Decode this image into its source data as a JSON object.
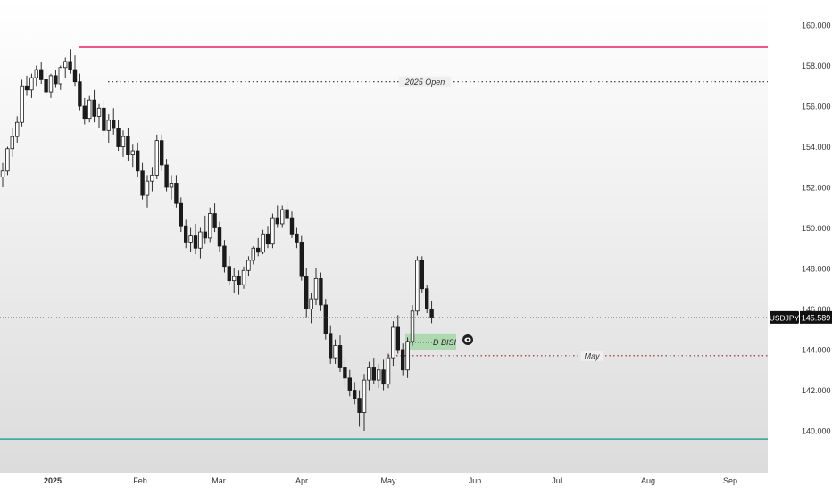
{
  "chart_data": {
    "type": "candlestick",
    "symbol": "USDJPY",
    "last_price": 145.589,
    "last_price_label": "145.589",
    "x_ticks": [
      "2025",
      "Feb",
      "Mar",
      "Apr",
      "May",
      "Jun",
      "Jul",
      "Aug",
      "Sep"
    ],
    "y_ticks": [
      140.0,
      142.0,
      144.0,
      146.0,
      148.0,
      150.0,
      152.0,
      154.0,
      156.0,
      158.0,
      160.0
    ],
    "y_tick_labels": [
      "140.000",
      "142.000",
      "144.000",
      "146.000",
      "148.000",
      "150.000",
      "152.000",
      "154.000",
      "156.000",
      "158.000",
      "160.000"
    ],
    "ylim": [
      139.0,
      161.2
    ],
    "levels": [
      {
        "name": "high",
        "price": 158.9,
        "color": "#e91e63",
        "style": "solid",
        "label": ""
      },
      {
        "name": "2025-open",
        "price": 157.2,
        "color": "#333333",
        "style": "dotted",
        "label": "2025 Open"
      },
      {
        "name": "may-open",
        "price": 143.7,
        "color": "#8b2a3a",
        "style": "dotted",
        "label": "May"
      },
      {
        "name": "low",
        "price": 139.6,
        "color": "#26a69a",
        "style": "solid",
        "label": ""
      }
    ],
    "zone": {
      "label": "D BISI",
      "top": 144.8,
      "bottom": 144.0,
      "color": "#a5d6a7"
    },
    "candles": [
      [
        152.5,
        153.2,
        152.0,
        152.8
      ],
      [
        152.8,
        154.0,
        152.6,
        153.9
      ],
      [
        153.9,
        154.9,
        153.5,
        154.5
      ],
      [
        154.5,
        155.5,
        154.2,
        155.2
      ],
      [
        155.2,
        157.3,
        155.0,
        157.0
      ],
      [
        157.0,
        157.5,
        156.5,
        156.8
      ],
      [
        156.8,
        157.6,
        156.4,
        157.4
      ],
      [
        157.4,
        158.0,
        157.0,
        157.8
      ],
      [
        157.8,
        158.2,
        157.1,
        157.3
      ],
      [
        157.3,
        157.9,
        156.5,
        156.7
      ],
      [
        156.7,
        157.6,
        156.4,
        157.5
      ],
      [
        157.5,
        157.8,
        156.9,
        157.1
      ],
      [
        157.1,
        158.0,
        156.8,
        157.9
      ],
      [
        157.9,
        158.4,
        157.4,
        158.2
      ],
      [
        158.2,
        158.8,
        157.6,
        157.8
      ],
      [
        157.8,
        158.5,
        157.0,
        157.2
      ],
      [
        157.2,
        157.6,
        155.8,
        156.0
      ],
      [
        156.0,
        156.4,
        155.1,
        155.4
      ],
      [
        155.4,
        156.5,
        155.2,
        156.3
      ],
      [
        156.3,
        156.8,
        155.2,
        155.5
      ],
      [
        155.5,
        156.1,
        154.9,
        155.9
      ],
      [
        155.9,
        156.3,
        154.5,
        154.8
      ],
      [
        154.8,
        155.6,
        154.2,
        155.3
      ],
      [
        155.3,
        155.9,
        154.6,
        154.9
      ],
      [
        154.9,
        155.3,
        153.8,
        154.0
      ],
      [
        154.0,
        154.8,
        153.5,
        154.5
      ],
      [
        154.5,
        154.9,
        153.3,
        153.6
      ],
      [
        153.6,
        154.1,
        153.0,
        153.8
      ],
      [
        153.8,
        154.2,
        152.5,
        152.8
      ],
      [
        152.8,
        153.2,
        151.4,
        151.6
      ],
      [
        151.6,
        152.6,
        151.0,
        152.3
      ],
      [
        152.3,
        153.0,
        151.8,
        152.6
      ],
      [
        152.6,
        154.6,
        152.4,
        154.3
      ],
      [
        154.3,
        154.6,
        152.8,
        153.1
      ],
      [
        153.1,
        153.4,
        151.8,
        152.0
      ],
      [
        152.0,
        152.6,
        151.4,
        152.2
      ],
      [
        152.2,
        152.6,
        151.0,
        151.2
      ],
      [
        151.2,
        151.5,
        149.8,
        150.1
      ],
      [
        150.1,
        150.4,
        149.0,
        149.3
      ],
      [
        149.3,
        150.0,
        148.8,
        149.6
      ],
      [
        149.6,
        150.2,
        148.7,
        149.0
      ],
      [
        149.0,
        150.0,
        148.5,
        149.8
      ],
      [
        149.8,
        150.6,
        149.2,
        149.5
      ],
      [
        149.5,
        151.0,
        149.3,
        150.7
      ],
      [
        150.7,
        151.2,
        149.8,
        150.0
      ],
      [
        150.0,
        150.3,
        148.8,
        149.1
      ],
      [
        149.1,
        149.4,
        147.8,
        148.1
      ],
      [
        148.1,
        148.6,
        147.2,
        147.4
      ],
      [
        147.4,
        148.0,
        146.8,
        147.6
      ],
      [
        147.6,
        147.9,
        146.7,
        147.2
      ],
      [
        147.2,
        148.1,
        147.0,
        147.9
      ],
      [
        147.9,
        148.6,
        147.6,
        148.4
      ],
      [
        148.4,
        149.1,
        148.2,
        149.0
      ],
      [
        149.0,
        149.5,
        148.6,
        148.8
      ],
      [
        148.8,
        149.9,
        148.7,
        149.7
      ],
      [
        149.7,
        150.1,
        149.0,
        149.2
      ],
      [
        149.2,
        150.7,
        149.0,
        150.5
      ],
      [
        150.5,
        151.1,
        150.0,
        150.2
      ],
      [
        150.2,
        151.1,
        150.0,
        150.9
      ],
      [
        150.9,
        151.3,
        150.3,
        150.5
      ],
      [
        150.5,
        150.8,
        149.5,
        149.7
      ],
      [
        149.7,
        150.0,
        149.0,
        149.3
      ],
      [
        149.3,
        149.6,
        147.4,
        147.6
      ],
      [
        147.6,
        148.0,
        145.6,
        146.0
      ],
      [
        146.0,
        146.8,
        145.3,
        146.5
      ],
      [
        146.5,
        148.0,
        146.2,
        147.5
      ],
      [
        147.5,
        147.8,
        145.9,
        146.2
      ],
      [
        146.2,
        146.5,
        144.5,
        144.8
      ],
      [
        144.8,
        145.2,
        143.3,
        143.6
      ],
      [
        143.6,
        144.5,
        143.3,
        144.2
      ],
      [
        144.2,
        144.7,
        142.9,
        143.1
      ],
      [
        143.1,
        143.6,
        142.2,
        142.6
      ],
      [
        142.6,
        143.0,
        141.7,
        142.0
      ],
      [
        142.0,
        142.4,
        141.3,
        141.6
      ],
      [
        141.6,
        142.0,
        140.2,
        140.9
      ],
      [
        140.9,
        142.8,
        140.0,
        142.5
      ],
      [
        142.5,
        143.4,
        142.0,
        143.1
      ],
      [
        143.1,
        143.6,
        142.3,
        142.5
      ],
      [
        142.5,
        143.3,
        142.1,
        143.0
      ],
      [
        143.0,
        143.5,
        142.0,
        142.3
      ],
      [
        142.3,
        143.8,
        142.1,
        143.6
      ],
      [
        143.6,
        145.4,
        143.2,
        145.1
      ],
      [
        145.1,
        145.7,
        143.8,
        144.0
      ],
      [
        144.0,
        144.3,
        142.7,
        143.0
      ],
      [
        143.0,
        144.6,
        142.6,
        144.4
      ],
      [
        144.4,
        146.2,
        144.2,
        145.9
      ],
      [
        145.9,
        148.6,
        145.7,
        148.4
      ],
      [
        148.4,
        148.6,
        146.8,
        147.0
      ],
      [
        147.0,
        147.2,
        145.8,
        146.0
      ],
      [
        146.0,
        146.4,
        145.3,
        145.589
      ]
    ]
  }
}
